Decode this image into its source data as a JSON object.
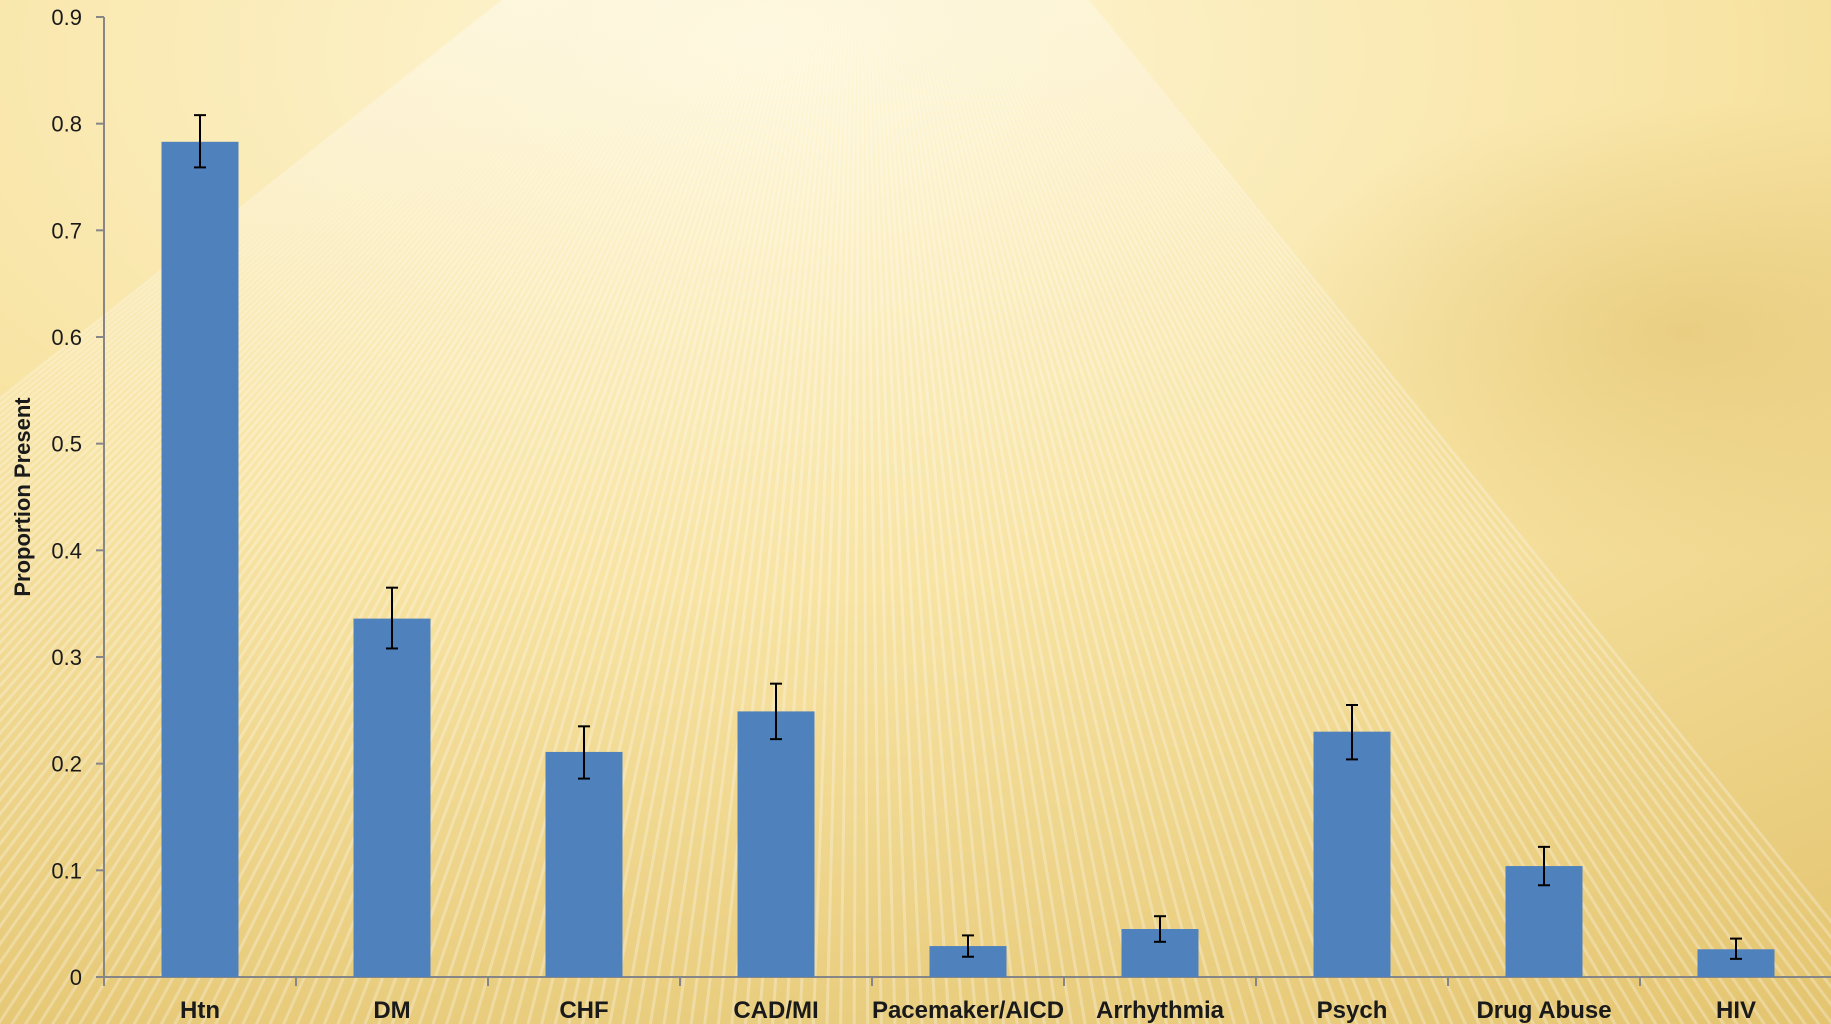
{
  "colors": {
    "bar": "#4f81bd",
    "axis": "#868686",
    "error_bar": "#000000",
    "background_light": "#fdf3cc",
    "background_dark": "#e6c76e"
  },
  "chart_data": {
    "type": "bar",
    "title": "",
    "xlabel": "",
    "ylabel": "Proportion Present",
    "ylim": [
      0,
      0.9
    ],
    "yticks": [
      "0",
      "0.1",
      "0.2",
      "0.3",
      "0.4",
      "0.5",
      "0.6",
      "0.7",
      "0.8",
      "0.9"
    ],
    "ytick_values": [
      0,
      0.1,
      0.2,
      0.3,
      0.4,
      0.5,
      0.6,
      0.7,
      0.8,
      0.9
    ],
    "grid": false,
    "legend": "none",
    "categories": [
      "Htn",
      "DM",
      "CHF",
      "CAD/MI",
      "Pacemaker/AICD",
      "Arrhythmia",
      "Psych",
      "Drug Abuse",
      "HIV"
    ],
    "values": [
      0.783,
      0.336,
      0.211,
      0.249,
      0.029,
      0.045,
      0.23,
      0.104,
      0.026
    ],
    "error_low": [
      0.759,
      0.308,
      0.186,
      0.223,
      0.019,
      0.033,
      0.204,
      0.086,
      0.017
    ],
    "error_high": [
      0.808,
      0.365,
      0.235,
      0.275,
      0.039,
      0.057,
      0.255,
      0.122,
      0.036
    ]
  }
}
